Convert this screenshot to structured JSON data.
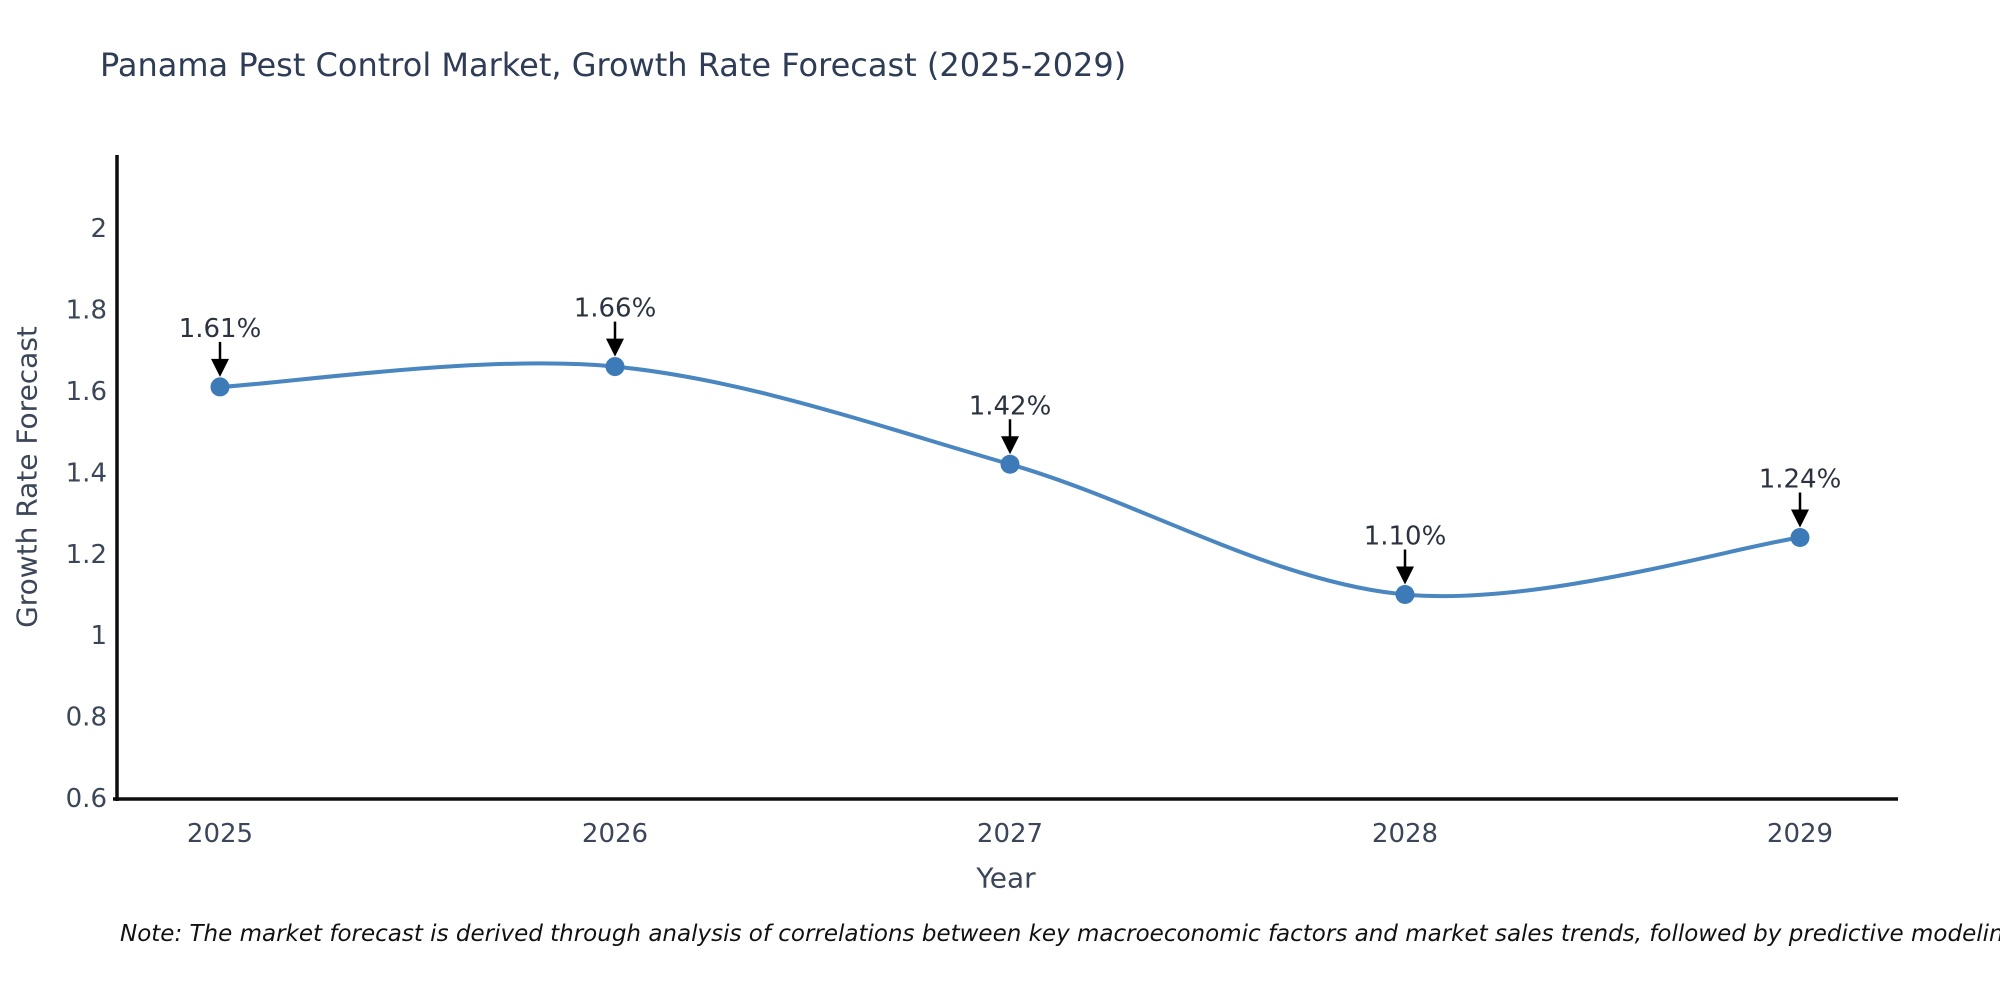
{
  "title": "Panama Pest Control Market, Growth Rate Forecast (2025-2029)",
  "note": "Note: The market forecast is derived through analysis of correlations between key macroeconomic factors and market sales trends, followed by predictive modeling to project future sales",
  "chart_data": {
    "type": "line",
    "title": "Panama Pest Control Market, Growth Rate Forecast (2025-2029)",
    "xlabel": "Year",
    "ylabel": "Growth Rate Forecast",
    "x": [
      "2025",
      "2026",
      "2027",
      "2028",
      "2029"
    ],
    "values": [
      1.61,
      1.66,
      1.42,
      1.1,
      1.24
    ],
    "point_labels": [
      "1.61%",
      "1.66%",
      "1.42%",
      "1.10%",
      "1.24%"
    ],
    "ylim": [
      0.6,
      2.0
    ],
    "yticks": [
      "0.6",
      "0.8",
      "1",
      "1.2",
      "1.4",
      "1.6",
      "1.8",
      "2"
    ],
    "line_shape": "spline",
    "grid": false,
    "legend": false,
    "annotation_style": "down-arrow-to-point",
    "colors": {
      "line": "#4a86c0",
      "marker": "#3c7ab8",
      "axis": "#0d0d0d",
      "arrow": "#000000",
      "title_text": "#2f3c56",
      "tick_text": "#3b4658",
      "annotation_text": "#2b3340"
    }
  }
}
